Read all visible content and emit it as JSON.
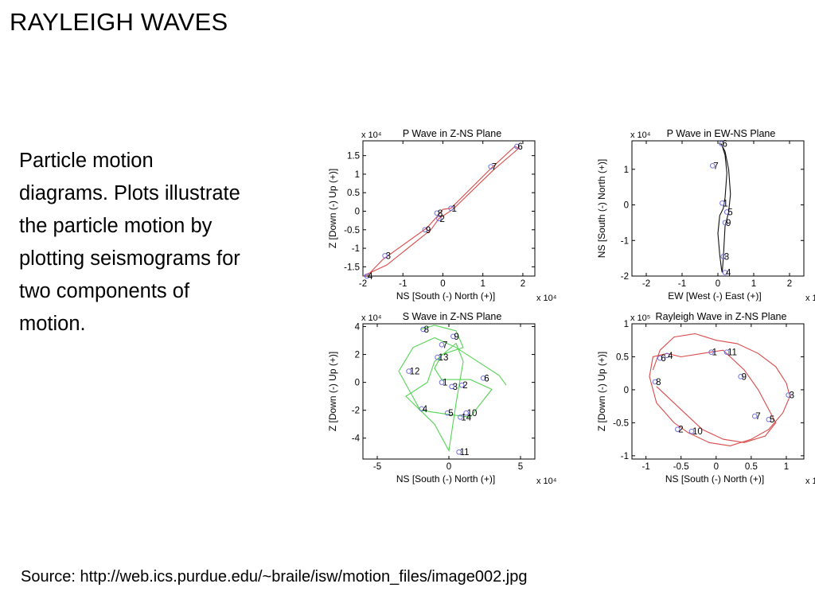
{
  "slide": {
    "title": "RAYLEIGH WAVES",
    "body_lines": [
      "Particle motion",
      "diagrams.  Plots illustrate",
      "the particle motion by",
      "plotting seismograms for",
      "two components of",
      "motion."
    ],
    "source": "Source: http://web.ics.purdue.edu/~braile/isw/motion_files/image002.jpg"
  },
  "colors": {
    "p_wave": "#d94a4a",
    "s_wave": "#55d455",
    "ew_ns": "#111111",
    "rayleigh": "#d94a4a",
    "markers": "#7070e0"
  },
  "chart_data": [
    {
      "type": "line",
      "title": "P Wave in Z-NS Plane",
      "xlabel": "NS [South (-)    North (+)]",
      "ylabel": "Z [Down (-)    Up (+)]",
      "x_scale_label": "x 10⁴",
      "y_scale_label": "x 10⁴",
      "xlim": [
        -2,
        2.3
      ],
      "ylim": [
        -1.75,
        1.9
      ],
      "xticks": [
        -2,
        -1,
        0,
        1,
        2
      ],
      "yticks": [
        -1.5,
        -1,
        -0.5,
        0,
        0.5,
        1,
        1.5
      ],
      "x": [
        -1.9,
        -1.5,
        -0.4,
        -0.15,
        0,
        0.2,
        1.2,
        1.8,
        1.9,
        1.25,
        0.25,
        -0.1,
        -0.3,
        -1.4,
        -2.0
      ],
      "y": [
        -1.75,
        -1.3,
        -0.45,
        -0.15,
        0.05,
        0.08,
        1.15,
        1.75,
        1.7,
        1.1,
        0.05,
        -0.2,
        -0.5,
        -1.45,
        -1.75
      ],
      "points": [
        {
          "label": "1",
          "x": 0.2,
          "y": 0.08
        },
        {
          "label": "2",
          "x": -0.1,
          "y": -0.2
        },
        {
          "label": "3",
          "x": -1.45,
          "y": -1.2
        },
        {
          "label": "4",
          "x": -1.9,
          "y": -1.75
        },
        {
          "label": "6",
          "x": 1.85,
          "y": 1.75
        },
        {
          "label": "7",
          "x": 1.2,
          "y": 1.2
        },
        {
          "label": "8",
          "x": -0.15,
          "y": -0.05
        },
        {
          "label": "9",
          "x": -0.45,
          "y": -0.5
        }
      ]
    },
    {
      "type": "line",
      "title": "P Wave in EW-NS Plane",
      "xlabel": "EW [West (-)    East (+)]",
      "ylabel": "NS [South (-)    North (+)]",
      "x_scale_label": "x 10⁴",
      "y_scale_label": "x 10⁴",
      "xlim": [
        -2.4,
        2.4
      ],
      "ylim": [
        -2.0,
        1.8
      ],
      "xticks": [
        -2,
        -1,
        0,
        1,
        2
      ],
      "yticks": [
        -2,
        -1,
        0,
        1
      ],
      "x": [
        0.1,
        0.2,
        0.25,
        0.2,
        0.15,
        0.05,
        0.0,
        0.05,
        0.1,
        0.12,
        0.15,
        0.2,
        0.3,
        0.35,
        0.3,
        0.2,
        0.1,
        0.05
      ],
      "y": [
        1.72,
        1.4,
        0.9,
        0.2,
        -0.1,
        -0.3,
        -0.8,
        -1.4,
        -1.8,
        -1.9,
        -1.5,
        -0.6,
        -0.2,
        0.3,
        1.0,
        1.5,
        1.7,
        1.72
      ],
      "points": [
        {
          "label": "6",
          "x": 0.1,
          "y": 1.72
        },
        {
          "label": "7",
          "x": -0.15,
          "y": 1.1
        },
        {
          "label": "1",
          "x": 0.12,
          "y": 0.05
        },
        {
          "label": "5",
          "x": 0.25,
          "y": -0.2
        },
        {
          "label": "9",
          "x": 0.2,
          "y": -0.5
        },
        {
          "label": "3",
          "x": 0.15,
          "y": -1.45
        },
        {
          "label": "4",
          "x": 0.2,
          "y": -1.9
        }
      ]
    },
    {
      "type": "line",
      "title": "S Wave in Z-NS Plane",
      "xlabel": "NS [South (-)    North (+)]",
      "ylabel": "Z [Down (-)    Up (+)]",
      "x_scale_label": "x 10⁴",
      "y_scale_label": "x 10⁴",
      "xlim": [
        -6,
        6
      ],
      "ylim": [
        -5.5,
        4.2
      ],
      "xticks": [
        -5,
        0,
        5
      ],
      "yticks": [
        -4,
        -2,
        0,
        2,
        4
      ],
      "x": [
        -2,
        -1,
        0.5,
        1,
        -0.5,
        -1,
        -0.5,
        1.5,
        3,
        2,
        1.5,
        0,
        -2,
        -3,
        -1.5,
        -1,
        0.5,
        1,
        0.5,
        0,
        -1,
        -2,
        -3.5,
        -2.5,
        -1,
        0.5,
        2,
        3.5,
        4
      ],
      "y": [
        3.8,
        4.1,
        3.7,
        2.5,
        2.0,
        1.0,
        0.2,
        0.2,
        -0.5,
        -1.8,
        -2.5,
        -2.3,
        -2.0,
        -1.0,
        0,
        1.5,
        2.8,
        1.5,
        -1.5,
        -4.9,
        -3.0,
        -2.0,
        0.8,
        2.5,
        3.2,
        2.5,
        1.5,
        0.5,
        -0.2
      ],
      "points": [
        {
          "label": "8",
          "x": -1.8,
          "y": 3.8
        },
        {
          "label": "9",
          "x": 0.3,
          "y": 3.3
        },
        {
          "label": "7",
          "x": -0.5,
          "y": 2.7
        },
        {
          "label": "13",
          "x": -0.8,
          "y": 1.8
        },
        {
          "label": "12",
          "x": -2.8,
          "y": 0.8
        },
        {
          "label": "6",
          "x": 2.4,
          "y": 0.3
        },
        {
          "label": "1",
          "x": -0.5,
          "y": 0
        },
        {
          "label": "3",
          "x": 0.2,
          "y": -0.3
        },
        {
          "label": "2",
          "x": 0.9,
          "y": -0.2
        },
        {
          "label": "4",
          "x": -1.9,
          "y": -1.9
        },
        {
          "label": "5",
          "x": -0.1,
          "y": -2.2
        },
        {
          "label": "10",
          "x": 1.2,
          "y": -2.2
        },
        {
          "label": "14",
          "x": 0.8,
          "y": -2.5
        },
        {
          "label": "11",
          "x": 0.7,
          "y": -5.0
        }
      ]
    },
    {
      "type": "line",
      "title": "Rayleigh Wave in Z-NS Plane",
      "xlabel": "NS [South (-)    North (+)]",
      "ylabel": "Z [Down (-)    Up (+)]",
      "x_scale_label": "x 10⁵",
      "y_scale_label": "x 10⁵",
      "xlim": [
        -1.2,
        1.25
      ],
      "ylim": [
        -1.05,
        1.0
      ],
      "xticks": [
        -1,
        -0.5,
        0,
        0.5,
        1
      ],
      "yticks": [
        -1,
        -0.5,
        0,
        0.5,
        1
      ],
      "x": [
        -0.9,
        -0.8,
        -0.6,
        -0.3,
        0,
        0.3,
        0.6,
        0.85,
        1.0,
        1.05,
        0.95,
        0.75,
        0.5,
        0.2,
        -0.1,
        -0.4,
        -0.6,
        -0.85,
        -0.95,
        -0.9,
        -0.7,
        -0.5,
        -0.2,
        0.1,
        0.4,
        0.6,
        0.75,
        0.85,
        0.7,
        0.4,
        0.1,
        -0.2,
        -0.5,
        -0.7,
        -0.85
      ],
      "y": [
        0.3,
        0.6,
        0.8,
        0.85,
        0.75,
        0.7,
        0.55,
        0.35,
        0.1,
        -0.1,
        -0.35,
        -0.6,
        -0.75,
        -0.85,
        -0.8,
        -0.65,
        -0.5,
        -0.2,
        0.2,
        0.5,
        0.55,
        0.5,
        0.55,
        0.6,
        0.3,
        0.0,
        -0.3,
        -0.5,
        -0.7,
        -0.8,
        -0.75,
        -0.6,
        -0.3,
        -0.1,
        0.05
      ],
      "points": [
        {
          "label": "6",
          "x": -0.8,
          "y": 0.48
        },
        {
          "label": "4",
          "x": -0.7,
          "y": 0.52
        },
        {
          "label": "1",
          "x": -0.07,
          "y": 0.57
        },
        {
          "label": "11",
          "x": 0.15,
          "y": 0.57
        },
        {
          "label": "9",
          "x": 0.35,
          "y": 0.2
        },
        {
          "label": "8",
          "x": -0.87,
          "y": 0.12
        },
        {
          "label": "3",
          "x": 1.03,
          "y": -0.08
        },
        {
          "label": "7",
          "x": 0.55,
          "y": -0.4
        },
        {
          "label": "5",
          "x": 0.75,
          "y": -0.45
        },
        {
          "label": "2",
          "x": -0.55,
          "y": -0.6
        },
        {
          "label": "10",
          "x": -0.35,
          "y": -0.63
        }
      ]
    }
  ]
}
